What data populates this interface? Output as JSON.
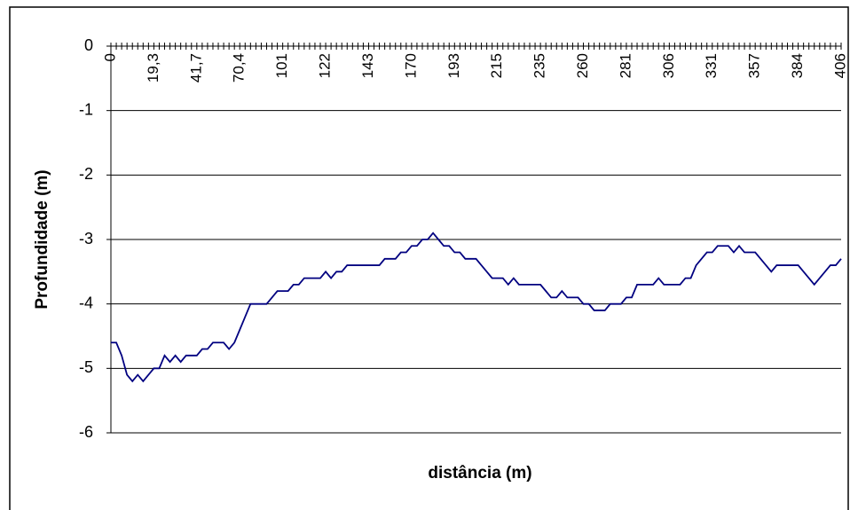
{
  "chart_data": {
    "type": "line",
    "y_label": "Profundidade (m)",
    "x_label": "distância (m)",
    "categories": [
      "0",
      null,
      null,
      null,
      null,
      null,
      null,
      null,
      "19,3",
      null,
      null,
      null,
      null,
      null,
      null,
      null,
      "41,7",
      null,
      null,
      null,
      null,
      null,
      null,
      null,
      "70,4",
      null,
      null,
      null,
      null,
      null,
      null,
      null,
      "101",
      null,
      null,
      null,
      null,
      null,
      null,
      null,
      "122",
      null,
      null,
      null,
      null,
      null,
      null,
      null,
      "143",
      null,
      null,
      null,
      null,
      null,
      null,
      null,
      "170",
      null,
      null,
      null,
      null,
      null,
      null,
      null,
      "193",
      null,
      null,
      null,
      null,
      null,
      null,
      null,
      "215",
      null,
      null,
      null,
      null,
      null,
      null,
      null,
      "235",
      null,
      null,
      null,
      null,
      null,
      null,
      null,
      "260",
      null,
      null,
      null,
      null,
      null,
      null,
      null,
      "281",
      null,
      null,
      null,
      null,
      null,
      null,
      null,
      "306",
      null,
      null,
      null,
      null,
      null,
      null,
      null,
      "331",
      null,
      null,
      null,
      null,
      null,
      null,
      null,
      "357",
      null,
      null,
      null,
      null,
      null,
      null,
      null,
      "384",
      null,
      null,
      null,
      null,
      null,
      null,
      null,
      "406"
    ],
    "values": [
      -4.6,
      -4.6,
      -4.8,
      -5.1,
      -5.2,
      -5.1,
      -5.2,
      -5.1,
      -5.0,
      -5.0,
      -4.8,
      -4.9,
      -4.8,
      -4.9,
      -4.8,
      -4.8,
      -4.8,
      -4.7,
      -4.7,
      -4.6,
      -4.6,
      -4.6,
      -4.7,
      -4.6,
      -4.4,
      -4.2,
      -4.0,
      -4.0,
      -4.0,
      -4.0,
      -3.9,
      -3.8,
      -3.8,
      -3.8,
      -3.7,
      -3.7,
      -3.6,
      -3.6,
      -3.6,
      -3.6,
      -3.5,
      -3.6,
      -3.5,
      -3.5,
      -3.4,
      -3.4,
      -3.4,
      -3.4,
      -3.4,
      -3.4,
      -3.4,
      -3.3,
      -3.3,
      -3.3,
      -3.2,
      -3.2,
      -3.1,
      -3.1,
      -3.0,
      -3.0,
      -2.9,
      -3.0,
      -3.1,
      -3.1,
      -3.2,
      -3.2,
      -3.3,
      -3.3,
      -3.3,
      -3.4,
      -3.5,
      -3.6,
      -3.6,
      -3.6,
      -3.7,
      -3.6,
      -3.7,
      -3.7,
      -3.7,
      -3.7,
      -3.7,
      -3.8,
      -3.9,
      -3.9,
      -3.8,
      -3.9,
      -3.9,
      -3.9,
      -4.0,
      -4.0,
      -4.1,
      -4.1,
      -4.1,
      -4.0,
      -4.0,
      -4.0,
      -3.9,
      -3.9,
      -3.7,
      -3.7,
      -3.7,
      -3.7,
      -3.6,
      -3.7,
      -3.7,
      -3.7,
      -3.7,
      -3.6,
      -3.6,
      -3.4,
      -3.3,
      -3.2,
      -3.2,
      -3.1,
      -3.1,
      -3.1,
      -3.2,
      -3.1,
      -3.2,
      -3.2,
      -3.2,
      -3.3,
      -3.4,
      -3.5,
      -3.4,
      -3.4,
      -3.4,
      -3.4,
      -3.4,
      -3.5,
      -3.6,
      -3.7,
      -3.6,
      -3.5,
      -3.4,
      -3.4,
      -3.3
    ],
    "color": "#000080",
    "ylim": [
      -6,
      0
    ],
    "yticks": [
      0,
      -1,
      -2,
      -3,
      -4,
      -5,
      -6
    ],
    "grid": true
  }
}
